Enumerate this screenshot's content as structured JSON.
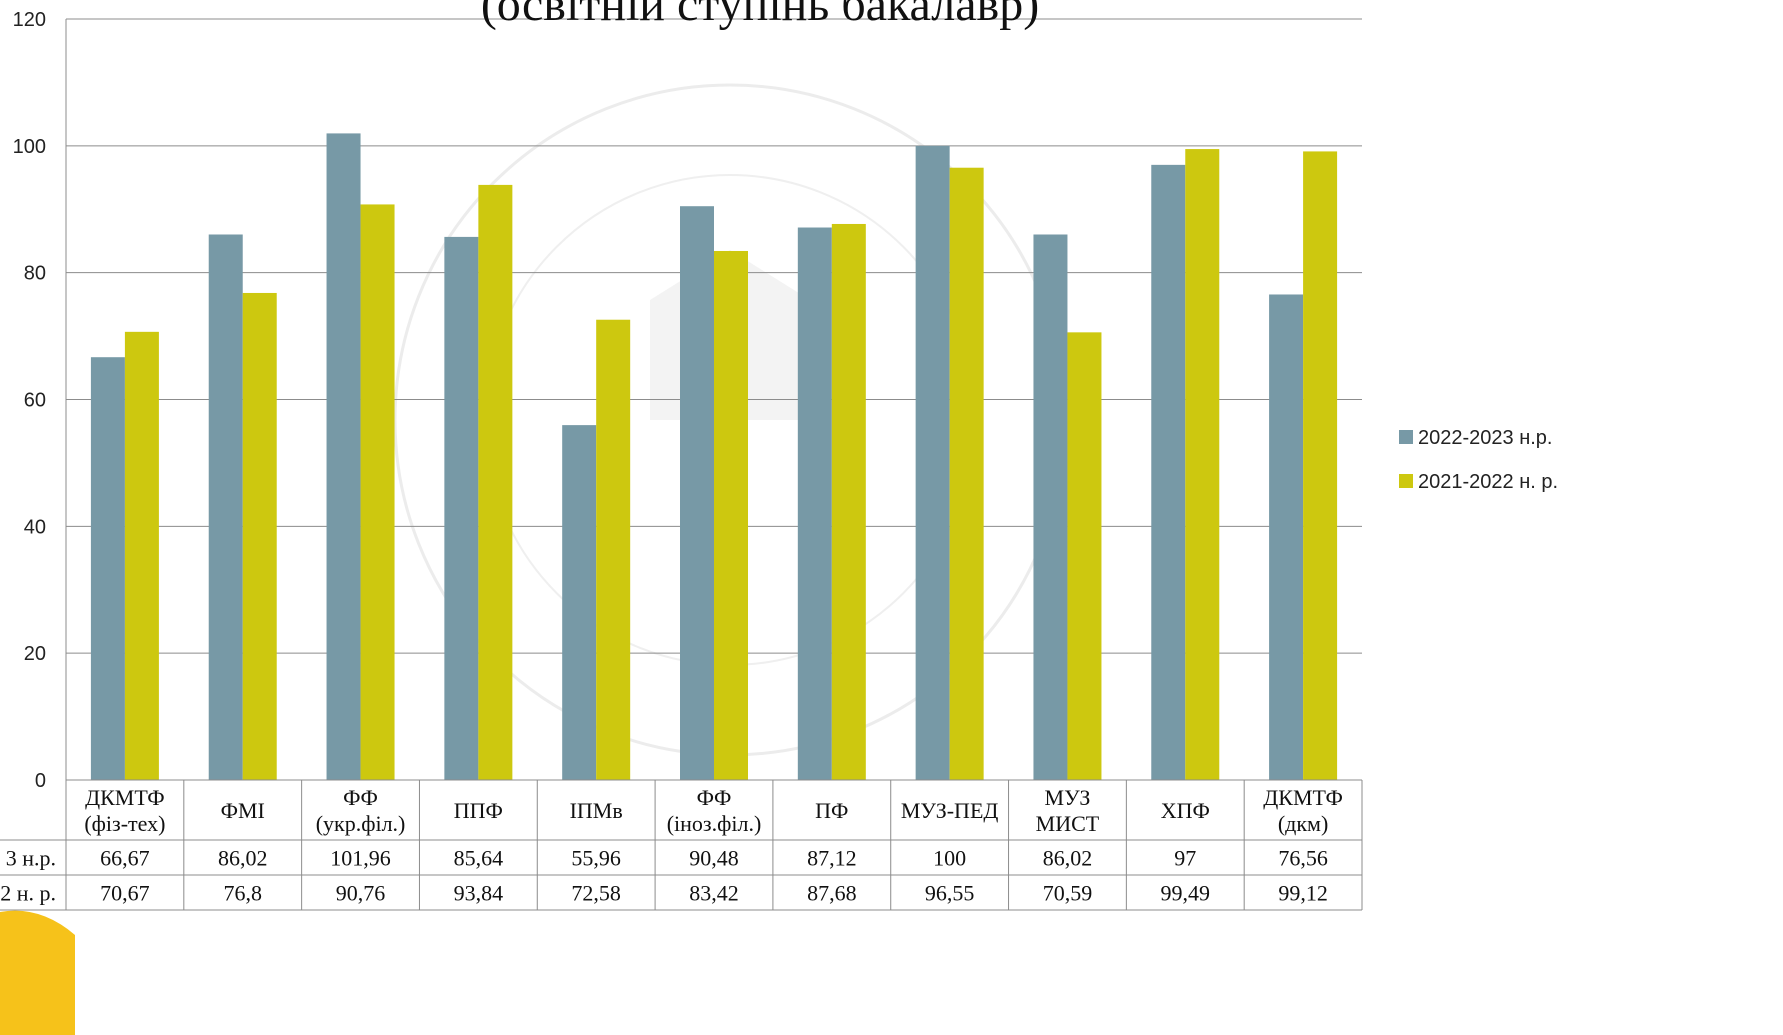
{
  "chart_data": {
    "type": "bar",
    "title": "(освітній ступінь бакалавр)",
    "categories": [
      [
        "ДКМТФ",
        "(фіз-тех)"
      ],
      [
        "ФМІ"
      ],
      [
        "ФФ",
        "(укр.філ.)"
      ],
      [
        "ППФ"
      ],
      [
        "ІПМв"
      ],
      [
        "ФФ",
        "(іноз.філ.)"
      ],
      [
        "ПФ"
      ],
      [
        "МУЗ-ПЕД"
      ],
      [
        "МУЗ",
        "МИСТ"
      ],
      [
        "ХПФ"
      ],
      [
        "ДКМТФ",
        "(дкм)"
      ]
    ],
    "series": [
      {
        "name": "2022-2023 н.р.",
        "table_label": "3 н.р.",
        "color": "#7799a6",
        "values": [
          66.67,
          86.02,
          101.96,
          85.64,
          55.96,
          90.48,
          87.12,
          100,
          86.02,
          97,
          76.56
        ],
        "value_labels": [
          "66,67",
          "86,02",
          "101,96",
          "85,64",
          "55,96",
          "90,48",
          "87,12",
          "100",
          "86,02",
          "97",
          "76,56"
        ]
      },
      {
        "name": "2021-2022 н. р.",
        "table_label": "2 н. р.",
        "color": "#cdc80f",
        "values": [
          70.67,
          76.8,
          90.76,
          93.84,
          72.58,
          83.42,
          87.68,
          96.55,
          70.59,
          99.49,
          99.12
        ],
        "value_labels": [
          "70,67",
          "76,8",
          "90,76",
          "93,84",
          "72,58",
          "83,42",
          "87,68",
          "96,55",
          "70,59",
          "99,49",
          "99,12"
        ]
      }
    ],
    "ylim": [
      0,
      120
    ],
    "yticks": [
      0,
      20,
      40,
      60,
      80,
      100,
      120
    ],
    "grid": true,
    "legend": "right",
    "data_table": true
  }
}
